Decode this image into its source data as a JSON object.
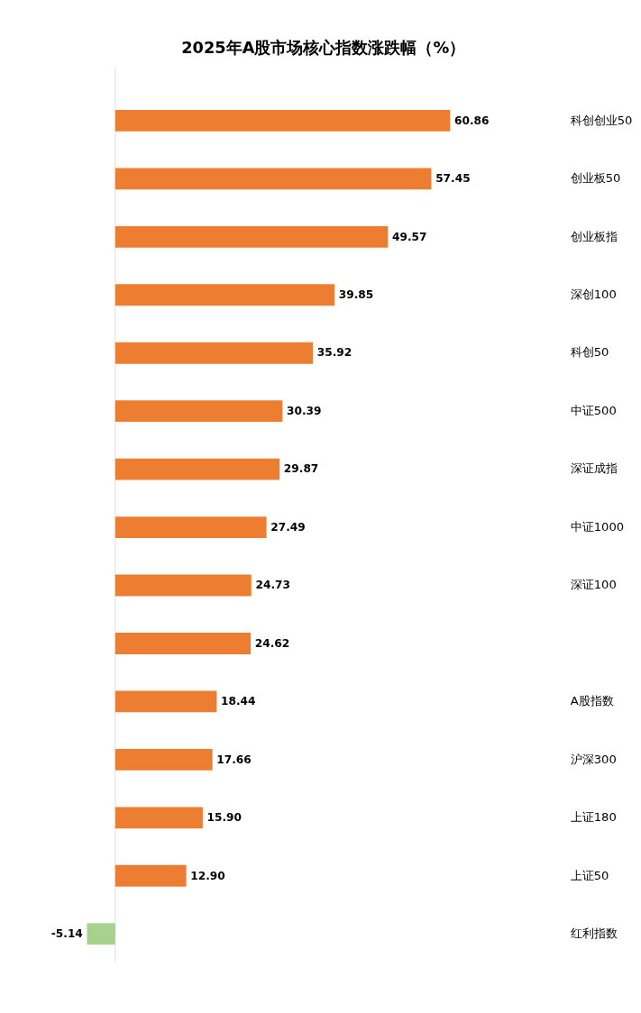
{
  "chart_data": {
    "type": "bar",
    "orientation": "horizontal",
    "title": "2025年A股市场核心指数涨跌幅（%）",
    "categories": [
      "科创创业50",
      "创业板50",
      "创业板指",
      "深创100",
      "科创50",
      "中证500",
      "深证成指",
      "中证1000",
      "深证100",
      null,
      "A股指数",
      "沪深300",
      "上证180",
      "上证50",
      "红利指数"
    ],
    "values": [
      60.86,
      57.45,
      49.57,
      39.85,
      35.92,
      30.39,
      29.87,
      27.49,
      24.73,
      24.62,
      18.44,
      17.66,
      15.9,
      12.9,
      -5.14
    ],
    "colors": [
      "#ed7d31",
      "#ed7d31",
      "#ed7d31",
      "#ed7d31",
      "#ed7d31",
      "#ed7d31",
      "#ed7d31",
      "#ed7d31",
      "#ed7d31",
      "#ed7d31",
      "#ed7d31",
      "#ed7d31",
      "#ed7d31",
      "#ed7d31",
      "#a9d18e"
    ],
    "value_labels": [
      "60.86",
      "57.45",
      "49.57",
      "39.85",
      "35.92",
      "30.39",
      "29.87",
      "27.49",
      "24.73",
      "24.62",
      "18.44",
      "17.66",
      "15.90",
      "12.90",
      "-5.14"
    ]
  }
}
